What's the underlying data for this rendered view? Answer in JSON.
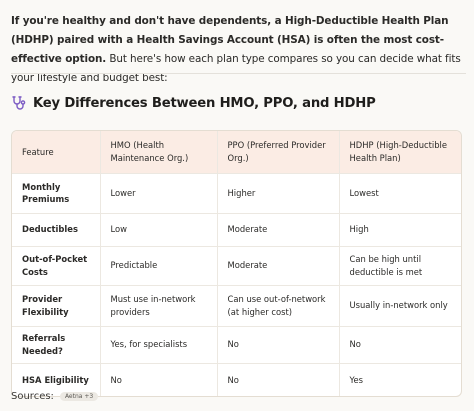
{
  "intro": {
    "bold_text": "If you're healthy and don't have dependents, a High-Deductible Health Plan (HDHP) paired with a Health Savings Account (HSA) is often the most cost-effective option.",
    "rest_text": " But here's how each plan type compares so you can decide what fits your lifestyle and budget best:"
  },
  "section": {
    "icon": "stethoscope-icon",
    "title": "Key Differences Between HMO, PPO, and HDHP"
  },
  "table": {
    "headers": [
      "Feature",
      "HMO (Health Maintenance Org.)",
      "PPO (Preferred Provider Org.)",
      "HDHP (High-Deductible Health Plan)"
    ],
    "rows": [
      {
        "height": 40,
        "cells": [
          "Monthly Premiums",
          "Lower",
          "Higher",
          "Lowest"
        ]
      },
      {
        "height": 33,
        "cells": [
          "Deductibles",
          "Low",
          "Moderate",
          "High"
        ]
      },
      {
        "height": 39,
        "cells": [
          "Out-of-Pocket Costs",
          "Predictable",
          "Moderate",
          "Can be high until deductible is met"
        ]
      },
      {
        "height": 41,
        "cells": [
          "Provider Flexibility",
          "Must use in-network providers",
          "Can use out-of-network (at higher cost)",
          "Usually in-network only"
        ]
      },
      {
        "height": 37,
        "cells": [
          "Referrals Needed?",
          "Yes, for specialists",
          "No",
          "No"
        ]
      },
      {
        "height": 33,
        "cells": [
          "HSA Eligibility",
          "No",
          "No",
          "Yes"
        ]
      }
    ]
  },
  "sources": {
    "label": "Sources:",
    "badge_text": "Aetna +3"
  },
  "colors": {
    "header_bg": "#fbece4",
    "icon": "#7c5cc4"
  }
}
